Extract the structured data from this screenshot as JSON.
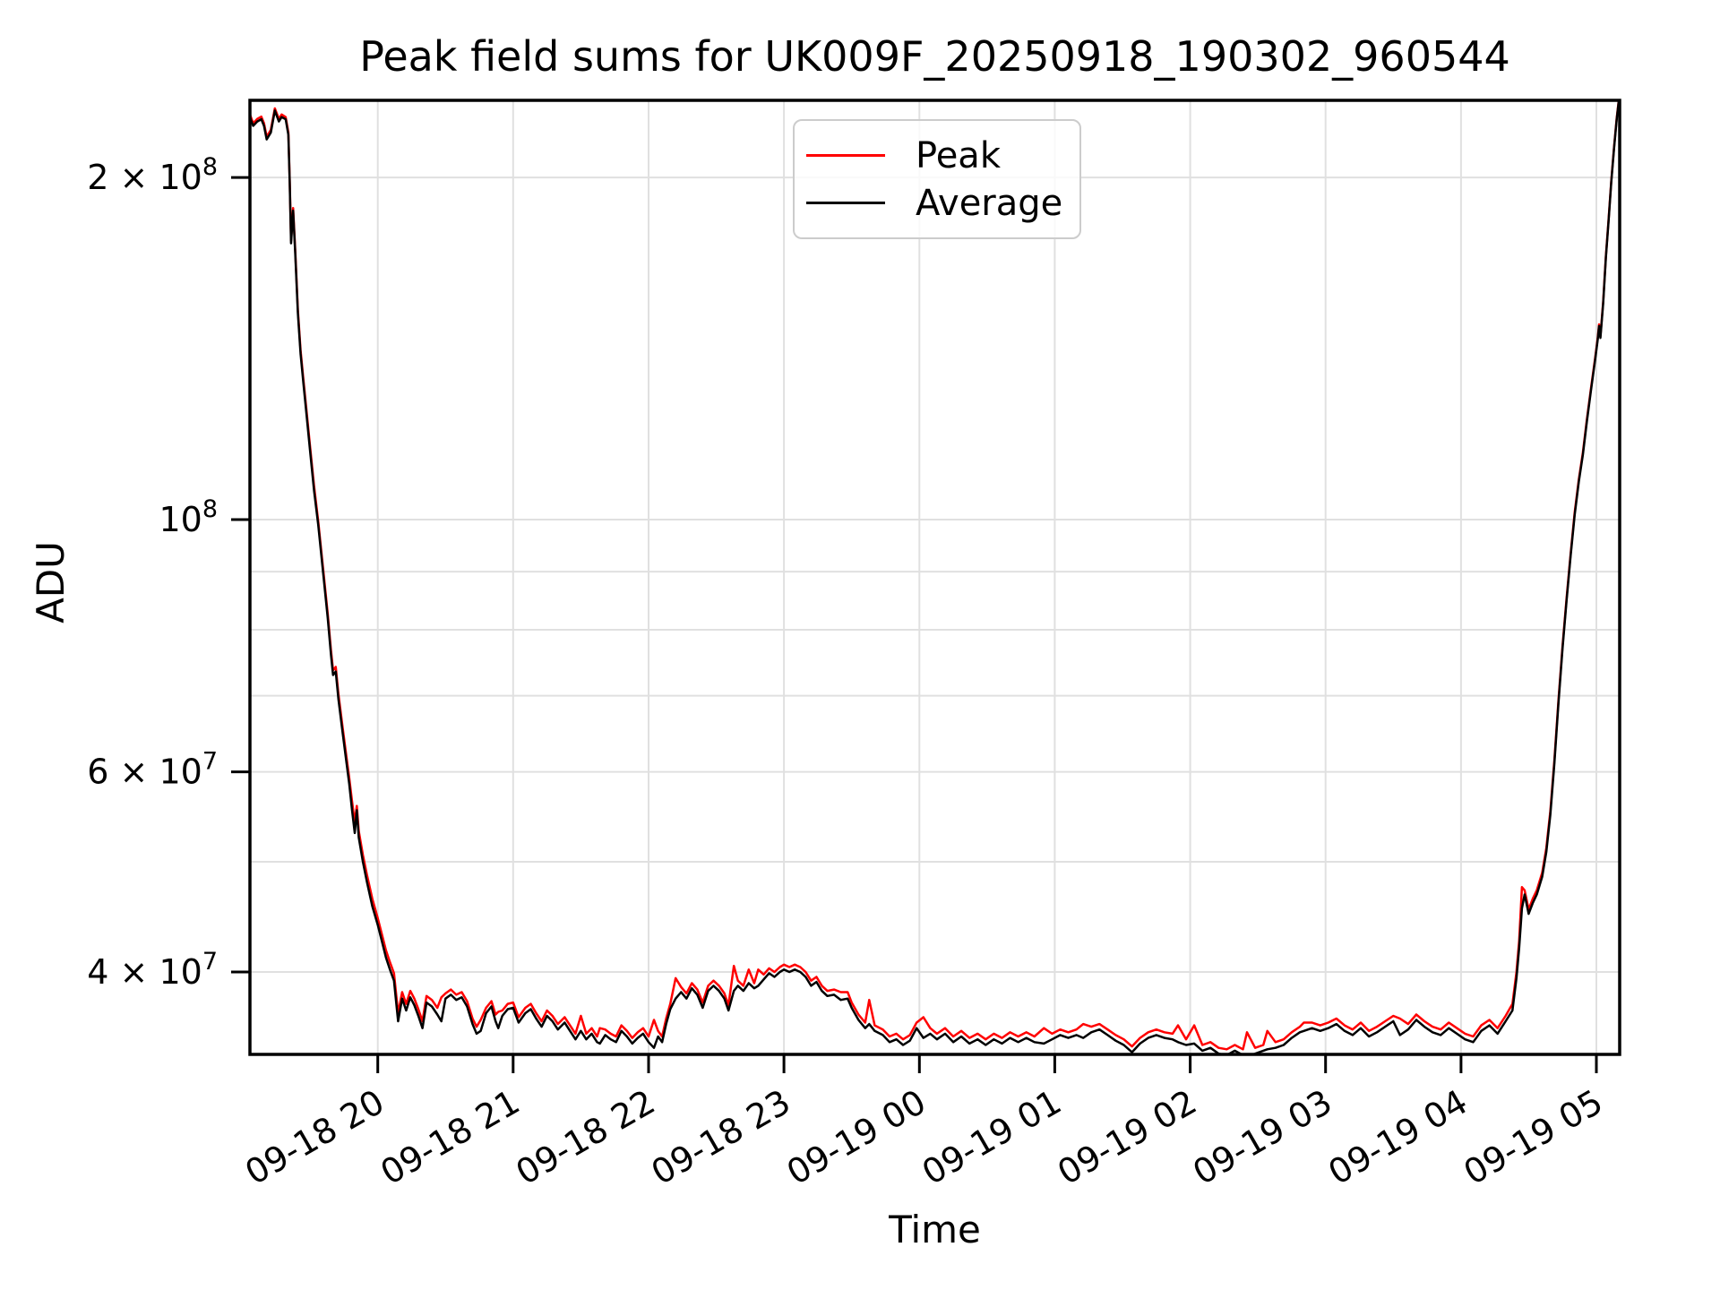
{
  "title": "Peak field sums for UK009F_20250918_190302_960544",
  "xlabel": "Time",
  "ylabel": "ADU",
  "legend": {
    "peak_label": "Peak",
    "average_label": "Average"
  },
  "colors": {
    "peak": "#ff0000",
    "average": "#000000",
    "grid": "#e0e0e0",
    "spine": "#000000",
    "legend_border": "#cccccc",
    "background": "#ffffff"
  },
  "chart_data": {
    "type": "line",
    "title": "Peak field sums for UK009F_20250918_190302_960544",
    "xlabel": "Time",
    "ylabel": "ADU",
    "y_scale": "log",
    "grid": true,
    "legend_position": "upper center",
    "x_unit": "hours since 2025-09-18 00:00",
    "value_unit_multiplier": 10000000.0,
    "x_range": [
      19.056,
      29.172
    ],
    "y_range": [
      33850000.0,
      233800000.0
    ],
    "x_ticks": [
      {
        "t": 20,
        "label": "09-18 20"
      },
      {
        "t": 21,
        "label": "09-18 21"
      },
      {
        "t": 22,
        "label": "09-18 22"
      },
      {
        "t": 23,
        "label": "09-18 23"
      },
      {
        "t": 24,
        "label": "09-19 00"
      },
      {
        "t": 25,
        "label": "09-19 01"
      },
      {
        "t": 26,
        "label": "09-19 02"
      },
      {
        "t": 27,
        "label": "09-19 03"
      },
      {
        "t": 28,
        "label": "09-19 04"
      },
      {
        "t": 29,
        "label": "09-19 05"
      }
    ],
    "y_ticks": [
      {
        "value": 200000000.0,
        "mantissa": "2 × 10",
        "exponent": "8"
      },
      {
        "value": 100000000.0,
        "mantissa": "10",
        "exponent": "8"
      },
      {
        "value": 60000000.0,
        "mantissa": "6 × 10",
        "exponent": "7"
      },
      {
        "value": 40000000.0,
        "mantissa": "4 × 10",
        "exponent": "7"
      }
    ],
    "y_gridlines": [
      40000000.0,
      50000000.0,
      60000000.0,
      70000000.0,
      80000000.0,
      90000000.0,
      100000000.0,
      200000000.0
    ],
    "series": [
      {
        "name": "Peak",
        "color": "#ff0000",
        "column": 2
      },
      {
        "name": "Average",
        "color": "#000000",
        "column": 1
      }
    ],
    "columns": [
      "t_hours",
      "average_1e7_ADU",
      "peak_1e7_ADU"
    ],
    "points": [
      [
        19.056,
        22.6,
        22.72
      ],
      [
        19.08,
        22.2,
        22.32
      ],
      [
        19.11,
        22.4,
        22.52
      ],
      [
        19.14,
        22.5,
        22.62
      ],
      [
        19.16,
        22.2,
        22.32
      ],
      [
        19.18,
        21.6,
        21.72
      ],
      [
        19.21,
        21.9,
        22.02
      ],
      [
        19.24,
        22.9,
        23.0
      ],
      [
        19.27,
        22.4,
        22.52
      ],
      [
        19.29,
        22.6,
        22.72
      ],
      [
        19.32,
        22.5,
        22.6
      ],
      [
        19.34,
        21.8,
        21.9
      ],
      [
        19.35,
        19.8,
        19.9
      ],
      [
        19.36,
        17.5,
        17.6
      ],
      [
        19.375,
        18.7,
        18.8
      ],
      [
        19.39,
        17.2,
        17.3
      ],
      [
        19.41,
        15.2,
        15.3
      ],
      [
        19.43,
        14.0,
        14.1
      ],
      [
        19.45,
        13.2,
        13.3
      ],
      [
        19.47,
        12.5,
        12.6
      ],
      [
        19.5,
        11.5,
        11.6
      ],
      [
        19.53,
        10.6,
        10.7
      ],
      [
        19.56,
        9.9,
        9.97
      ],
      [
        19.6,
        8.9,
        8.97
      ],
      [
        19.63,
        8.2,
        8.27
      ],
      [
        19.655,
        7.6,
        7.67
      ],
      [
        19.67,
        7.3,
        7.37
      ],
      [
        19.69,
        7.35,
        7.42
      ],
      [
        19.71,
        6.95,
        7.02
      ],
      [
        19.74,
        6.5,
        6.57
      ],
      [
        19.77,
        6.1,
        6.17
      ],
      [
        19.79,
        5.85,
        5.92
      ],
      [
        19.81,
        5.55,
        5.65
      ],
      [
        19.83,
        5.3,
        5.42
      ],
      [
        19.845,
        5.55,
        5.6
      ],
      [
        19.86,
        5.25,
        5.32
      ],
      [
        19.89,
        5.0,
        5.07
      ],
      [
        19.92,
        4.8,
        4.87
      ],
      [
        19.96,
        4.57,
        4.64
      ],
      [
        20.0,
        4.4,
        4.46
      ],
      [
        20.03,
        4.26,
        4.32
      ],
      [
        20.06,
        4.12,
        4.18
      ],
      [
        20.09,
        4.02,
        4.08
      ],
      [
        20.12,
        3.93,
        3.99
      ],
      [
        20.15,
        3.62,
        3.68
      ],
      [
        20.18,
        3.79,
        3.84
      ],
      [
        20.21,
        3.7,
        3.75
      ],
      [
        20.24,
        3.8,
        3.85
      ],
      [
        20.27,
        3.74,
        3.79
      ],
      [
        20.3,
        3.66,
        3.71
      ],
      [
        20.33,
        3.57,
        3.62
      ],
      [
        20.36,
        3.76,
        3.81
      ],
      [
        20.4,
        3.73,
        3.78
      ],
      [
        20.44,
        3.67,
        3.72
      ],
      [
        20.47,
        3.62,
        3.8
      ],
      [
        20.5,
        3.79,
        3.83
      ],
      [
        20.54,
        3.82,
        3.86
      ],
      [
        20.58,
        3.78,
        3.82
      ],
      [
        20.62,
        3.8,
        3.84
      ],
      [
        20.66,
        3.73,
        3.77
      ],
      [
        20.7,
        3.6,
        3.64
      ],
      [
        20.73,
        3.53,
        3.58
      ],
      [
        20.76,
        3.55,
        3.63
      ],
      [
        20.8,
        3.68,
        3.72
      ],
      [
        20.84,
        3.73,
        3.77
      ],
      [
        20.87,
        3.62,
        3.67
      ],
      [
        20.89,
        3.57,
        3.69
      ],
      [
        20.92,
        3.66,
        3.7
      ],
      [
        20.96,
        3.71,
        3.75
      ],
      [
        21.0,
        3.72,
        3.76
      ],
      [
        21.04,
        3.61,
        3.65
      ],
      [
        21.09,
        3.68,
        3.72
      ],
      [
        21.13,
        3.71,
        3.75
      ],
      [
        21.17,
        3.64,
        3.68
      ],
      [
        21.21,
        3.58,
        3.62
      ],
      [
        21.25,
        3.66,
        3.7
      ],
      [
        21.29,
        3.62,
        3.66
      ],
      [
        21.33,
        3.56,
        3.6
      ],
      [
        21.38,
        3.61,
        3.65
      ],
      [
        21.42,
        3.55,
        3.59
      ],
      [
        21.46,
        3.49,
        3.53
      ],
      [
        21.5,
        3.55,
        3.66
      ],
      [
        21.54,
        3.49,
        3.53
      ],
      [
        21.58,
        3.53,
        3.57
      ],
      [
        21.62,
        3.47,
        3.51
      ],
      [
        21.64,
        3.46,
        3.57
      ],
      [
        21.68,
        3.52,
        3.56
      ],
      [
        21.72,
        3.49,
        3.53
      ],
      [
        21.76,
        3.47,
        3.51
      ],
      [
        21.8,
        3.55,
        3.59
      ],
      [
        21.84,
        3.51,
        3.55
      ],
      [
        21.88,
        3.46,
        3.5
      ],
      [
        21.92,
        3.5,
        3.54
      ],
      [
        21.96,
        3.53,
        3.57
      ],
      [
        22.0,
        3.47,
        3.51
      ],
      [
        22.04,
        3.43,
        3.63
      ],
      [
        22.07,
        3.51,
        3.55
      ],
      [
        22.1,
        3.47,
        3.51
      ],
      [
        22.13,
        3.6,
        3.64
      ],
      [
        22.16,
        3.71,
        3.75
      ],
      [
        22.2,
        3.79,
        3.95
      ],
      [
        22.24,
        3.84,
        3.88
      ],
      [
        22.28,
        3.79,
        3.83
      ],
      [
        22.32,
        3.87,
        3.91
      ],
      [
        22.36,
        3.82,
        3.86
      ],
      [
        22.4,
        3.72,
        3.76
      ],
      [
        22.44,
        3.85,
        3.89
      ],
      [
        22.48,
        3.89,
        3.93
      ],
      [
        22.52,
        3.85,
        3.89
      ],
      [
        22.56,
        3.79,
        3.83
      ],
      [
        22.59,
        3.7,
        3.74
      ],
      [
        22.63,
        3.85,
        4.05
      ],
      [
        22.66,
        3.89,
        3.93
      ],
      [
        22.7,
        3.85,
        3.89
      ],
      [
        22.74,
        3.91,
        4.02
      ],
      [
        22.78,
        3.87,
        3.91
      ],
      [
        22.81,
        3.89,
        4.02
      ],
      [
        22.85,
        3.94,
        3.98
      ],
      [
        22.89,
        3.99,
        4.03
      ],
      [
        22.93,
        3.96,
        4.0
      ],
      [
        22.97,
        4.0,
        4.04
      ],
      [
        23.0,
        4.02,
        4.06
      ],
      [
        23.04,
        4.0,
        4.04
      ],
      [
        23.08,
        4.02,
        4.06
      ],
      [
        23.12,
        4.0,
        4.04
      ],
      [
        23.16,
        3.96,
        4.0
      ],
      [
        23.2,
        3.89,
        3.93
      ],
      [
        23.24,
        3.92,
        3.96
      ],
      [
        23.28,
        3.85,
        3.89
      ],
      [
        23.32,
        3.81,
        3.85
      ],
      [
        23.37,
        3.82,
        3.86
      ],
      [
        23.42,
        3.78,
        3.84
      ],
      [
        23.47,
        3.79,
        3.84
      ],
      [
        23.5,
        3.72,
        3.76
      ],
      [
        23.55,
        3.63,
        3.67
      ],
      [
        23.6,
        3.57,
        3.61
      ],
      [
        23.63,
        3.6,
        3.78
      ],
      [
        23.67,
        3.55,
        3.59
      ],
      [
        23.73,
        3.52,
        3.56
      ],
      [
        23.78,
        3.47,
        3.51
      ],
      [
        23.83,
        3.49,
        3.53
      ],
      [
        23.88,
        3.45,
        3.49
      ],
      [
        23.93,
        3.48,
        3.52
      ],
      [
        23.98,
        3.57,
        3.61
      ],
      [
        24.03,
        3.5,
        3.65
      ],
      [
        24.08,
        3.53,
        3.57
      ],
      [
        24.13,
        3.49,
        3.53
      ],
      [
        24.19,
        3.53,
        3.57
      ],
      [
        24.25,
        3.47,
        3.51
      ],
      [
        24.31,
        3.51,
        3.55
      ],
      [
        24.37,
        3.46,
        3.5
      ],
      [
        24.43,
        3.49,
        3.53
      ],
      [
        24.49,
        3.45,
        3.49
      ],
      [
        24.55,
        3.49,
        3.53
      ],
      [
        24.61,
        3.46,
        3.5
      ],
      [
        24.67,
        3.5,
        3.54
      ],
      [
        24.73,
        3.47,
        3.51
      ],
      [
        24.79,
        3.5,
        3.54
      ],
      [
        24.85,
        3.47,
        3.51
      ],
      [
        24.92,
        3.46,
        3.57
      ],
      [
        24.98,
        3.49,
        3.53
      ],
      [
        25.04,
        3.52,
        3.56
      ],
      [
        25.1,
        3.5,
        3.54
      ],
      [
        25.16,
        3.52,
        3.56
      ],
      [
        25.21,
        3.5,
        3.6
      ],
      [
        25.27,
        3.54,
        3.58
      ],
      [
        25.33,
        3.56,
        3.6
      ],
      [
        25.39,
        3.52,
        3.56
      ],
      [
        25.45,
        3.48,
        3.52
      ],
      [
        25.51,
        3.45,
        3.49
      ],
      [
        25.57,
        3.4,
        3.44
      ],
      [
        25.63,
        3.46,
        3.5
      ],
      [
        25.69,
        3.5,
        3.54
      ],
      [
        25.75,
        3.52,
        3.56
      ],
      [
        25.81,
        3.5,
        3.54
      ],
      [
        25.87,
        3.49,
        3.53
      ],
      [
        25.91,
        3.47,
        3.59
      ],
      [
        25.97,
        3.45,
        3.49
      ],
      [
        26.03,
        3.46,
        3.59
      ],
      [
        26.09,
        3.41,
        3.45
      ],
      [
        26.15,
        3.43,
        3.47
      ],
      [
        26.21,
        3.39,
        3.43
      ],
      [
        26.27,
        3.38,
        3.42
      ],
      [
        26.33,
        3.41,
        3.45
      ],
      [
        26.39,
        3.38,
        3.42
      ],
      [
        26.42,
        3.37,
        3.54
      ],
      [
        26.48,
        3.39,
        3.43
      ],
      [
        26.54,
        3.41,
        3.45
      ],
      [
        26.57,
        3.42,
        3.55
      ],
      [
        26.63,
        3.43,
        3.47
      ],
      [
        26.69,
        3.45,
        3.49
      ],
      [
        26.75,
        3.5,
        3.54
      ],
      [
        26.81,
        3.54,
        3.58
      ],
      [
        26.84,
        3.55,
        3.61
      ],
      [
        26.9,
        3.57,
        3.61
      ],
      [
        26.96,
        3.55,
        3.59
      ],
      [
        27.02,
        3.57,
        3.61
      ],
      [
        27.08,
        3.6,
        3.64
      ],
      [
        27.14,
        3.55,
        3.59
      ],
      [
        27.2,
        3.52,
        3.56
      ],
      [
        27.26,
        3.57,
        3.61
      ],
      [
        27.32,
        3.51,
        3.55
      ],
      [
        27.38,
        3.54,
        3.58
      ],
      [
        27.44,
        3.58,
        3.62
      ],
      [
        27.5,
        3.62,
        3.66
      ],
      [
        27.55,
        3.52,
        3.64
      ],
      [
        27.61,
        3.56,
        3.6
      ],
      [
        27.67,
        3.63,
        3.67
      ],
      [
        27.73,
        3.58,
        3.62
      ],
      [
        27.79,
        3.54,
        3.58
      ],
      [
        27.85,
        3.52,
        3.56
      ],
      [
        27.91,
        3.57,
        3.61
      ],
      [
        27.97,
        3.53,
        3.57
      ],
      [
        28.03,
        3.49,
        3.53
      ],
      [
        28.09,
        3.47,
        3.51
      ],
      [
        28.15,
        3.55,
        3.59
      ],
      [
        28.21,
        3.59,
        3.63
      ],
      [
        28.27,
        3.53,
        3.57
      ],
      [
        28.33,
        3.62,
        3.66
      ],
      [
        28.38,
        3.7,
        3.75
      ],
      [
        28.41,
        3.95,
        4.0
      ],
      [
        28.43,
        4.2,
        4.26
      ],
      [
        28.45,
        4.55,
        4.75
      ],
      [
        28.47,
        4.68,
        4.72
      ],
      [
        28.5,
        4.5,
        4.54
      ],
      [
        28.53,
        4.6,
        4.64
      ],
      [
        28.56,
        4.68,
        4.72
      ],
      [
        28.6,
        4.85,
        4.89
      ],
      [
        28.63,
        5.1,
        5.14
      ],
      [
        28.66,
        5.5,
        5.54
      ],
      [
        28.69,
        6.1,
        6.14
      ],
      [
        28.72,
        6.9,
        6.94
      ],
      [
        28.75,
        7.7,
        7.74
      ],
      [
        28.78,
        8.5,
        8.54
      ],
      [
        28.81,
        9.3,
        9.34
      ],
      [
        28.84,
        10.1,
        10.15
      ],
      [
        28.87,
        10.8,
        10.85
      ],
      [
        28.9,
        11.4,
        11.45
      ],
      [
        28.93,
        12.2,
        12.25
      ],
      [
        28.96,
        13.0,
        13.05
      ],
      [
        28.99,
        13.8,
        13.85
      ],
      [
        29.01,
        14.4,
        14.45
      ],
      [
        29.02,
        14.8,
        14.85
      ],
      [
        29.03,
        14.45,
        14.5
      ],
      [
        29.05,
        15.5,
        15.55
      ],
      [
        29.07,
        17.0,
        17.05
      ],
      [
        29.09,
        18.3,
        18.35
      ],
      [
        29.11,
        19.8,
        19.85
      ],
      [
        29.13,
        21.2,
        21.25
      ],
      [
        29.15,
        22.5,
        22.55
      ],
      [
        29.17,
        23.6,
        23.65
      ]
    ]
  }
}
